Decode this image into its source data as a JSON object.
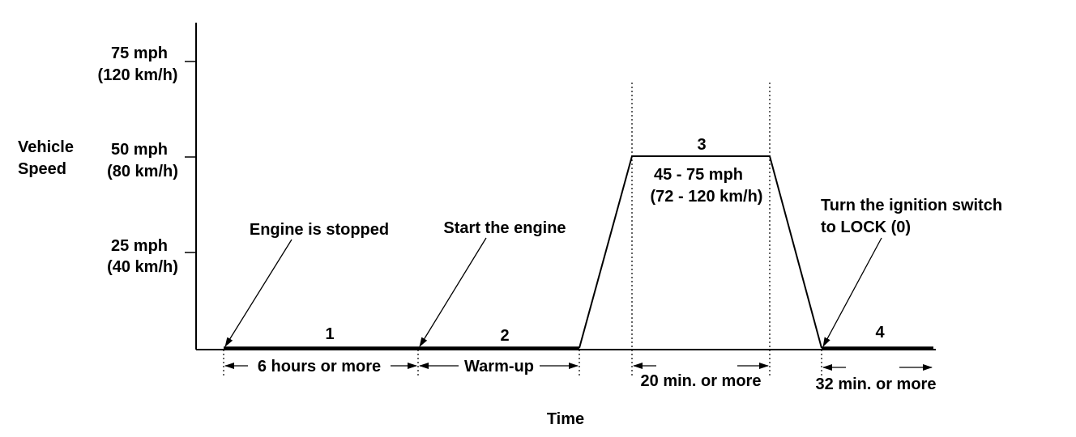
{
  "axes": {
    "y_title_line1": "Vehicle",
    "y_title_line2": "Speed",
    "x_title": "Time",
    "ticks": [
      {
        "mph": "75 mph",
        "kmh": "(120 km/h)"
      },
      {
        "mph": "50 mph",
        "kmh": "(80 km/h)"
      },
      {
        "mph": "25 mph",
        "kmh": "(40 km/h)"
      }
    ]
  },
  "steps": [
    {
      "number": "1",
      "duration": "6 hours or more"
    },
    {
      "number": "2",
      "duration": "Warm-up"
    },
    {
      "number": "3",
      "duration": "20 min. or more",
      "speed_line1": "45 - 75 mph",
      "speed_line2": "(72 - 120 km/h)"
    },
    {
      "number": "4",
      "duration": "32 min. or more"
    }
  ],
  "annotations": {
    "engine_stopped": "Engine is stopped",
    "start_engine": "Start the engine",
    "ignition_line1": "Turn the ignition switch",
    "ignition_line2": "to LOCK (0)"
  }
}
